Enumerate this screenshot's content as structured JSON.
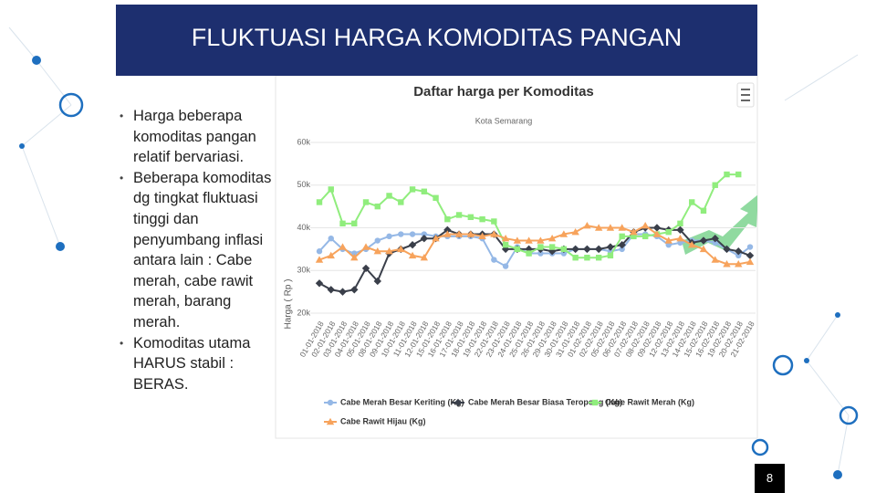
{
  "slide": {
    "title": "FLUKTUASI HARGA KOMODITAS PANGAN",
    "bullets": [
      "Harga beberapa komoditas pangan relatif bervariasi.",
      "Beberapa komoditas dg tingkat fluktuasi tinggi dan penyumbang inflasi antara lain : Cabe merah, cabe rawit merah, barang merah.",
      "Komoditas utama HARUS stabil : BERAS."
    ],
    "page_number": "8"
  },
  "chart_data": {
    "type": "line",
    "title": "Daftar harga per Komoditas",
    "subtitle": "Kota Semarang",
    "y_label": "Harga ( Rp )",
    "categories": [
      "01-01-2018",
      "02-01-2018",
      "03-01-2018",
      "04-01-2018",
      "05-01-2018",
      "08-01-2018",
      "09-01-2018",
      "10-01-2018",
      "11-01-2018",
      "12-01-2018",
      "15-01-2018",
      "16-01-2018",
      "17-01-2018",
      "18-01-2018",
      "19-01-2018",
      "22-01-2018",
      "23-01-2018",
      "24-01-2018",
      "25-01-2018",
      "26-01-2018",
      "29-01-2018",
      "30-01-2018",
      "31-01-2018",
      "01-02-2018",
      "02-02-2018",
      "05-02-2018",
      "06-02-2018",
      "07-02-2018",
      "08-02-2018",
      "09-02-2018",
      "12-02-2018",
      "13-02-2018",
      "14-02-2018",
      "15-02-2018",
      "16-02-2018",
      "19-02-2018",
      "20-02-2018",
      "21-02-2018"
    ],
    "ylim": [
      20000,
      62000
    ],
    "yticks": [
      {
        "value": 20000,
        "label": "20k"
      },
      {
        "value": 30000,
        "label": "30k"
      },
      {
        "value": 40000,
        "label": "40k"
      },
      {
        "value": 50000,
        "label": "50k"
      },
      {
        "value": 60000,
        "label": "60k"
      }
    ],
    "series": [
      {
        "name": "Cabe Merah Besar Keriting (Kg)",
        "color": "#95b8e6",
        "marker": "circle",
        "values": [
          34500,
          37500,
          35000,
          34000,
          35000,
          37000,
          38000,
          38500,
          38500,
          38500,
          38000,
          38000,
          38000,
          38000,
          37500,
          32500,
          31000,
          35500,
          34000,
          34000,
          34000,
          34000,
          35000,
          35000,
          35000,
          34500,
          35000,
          38500,
          38500,
          38000,
          36000,
          36500,
          37000,
          37000,
          36500,
          35000,
          33500,
          35500
        ]
      },
      {
        "name": "Cabe Merah Besar Biasa Teropong (Kg)",
        "color": "#3a3f4a",
        "marker": "diamond",
        "values": [
          27000,
          25500,
          25000,
          25500,
          30500,
          27500,
          34000,
          35000,
          36000,
          37500,
          37500,
          39500,
          38500,
          38500,
          38500,
          38500,
          35000,
          35000,
          35000,
          35000,
          34500,
          35000,
          35000,
          35000,
          35000,
          35500,
          36000,
          39000,
          40000,
          40000,
          39500,
          39500,
          36500,
          37000,
          37500,
          35000,
          34500,
          33500
        ]
      },
      {
        "name": "Cabe Rawit Merah (Kg)",
        "color": "#90ed7d",
        "marker": "square",
        "values": [
          46000,
          49000,
          41000,
          41000,
          46000,
          45000,
          47500,
          46000,
          49000,
          48500,
          47000,
          42000,
          43000,
          42500,
          42000,
          41500,
          36000,
          35000,
          34000,
          35500,
          35500,
          35000,
          33000,
          33000,
          33000,
          33500,
          38000,
          38000,
          38000,
          38500,
          39000,
          41000,
          46000,
          44000,
          50000,
          52500,
          52500,
          null
        ]
      },
      {
        "name": "Cabe Rawit Hijau (Kg)",
        "color": "#f7a35c",
        "marker": "triangle",
        "values": [
          32500,
          33500,
          35500,
          33000,
          35500,
          34500,
          34500,
          35000,
          33500,
          33000,
          37500,
          38500,
          38500,
          38500,
          38000,
          38500,
          37500,
          37000,
          37000,
          37000,
          37500,
          38500,
          39000,
          40500,
          40000,
          40000,
          40000,
          39000,
          40500,
          38500,
          37000,
          37500,
          36000,
          35000,
          32500,
          31500,
          31500,
          32000
        ]
      }
    ]
  }
}
